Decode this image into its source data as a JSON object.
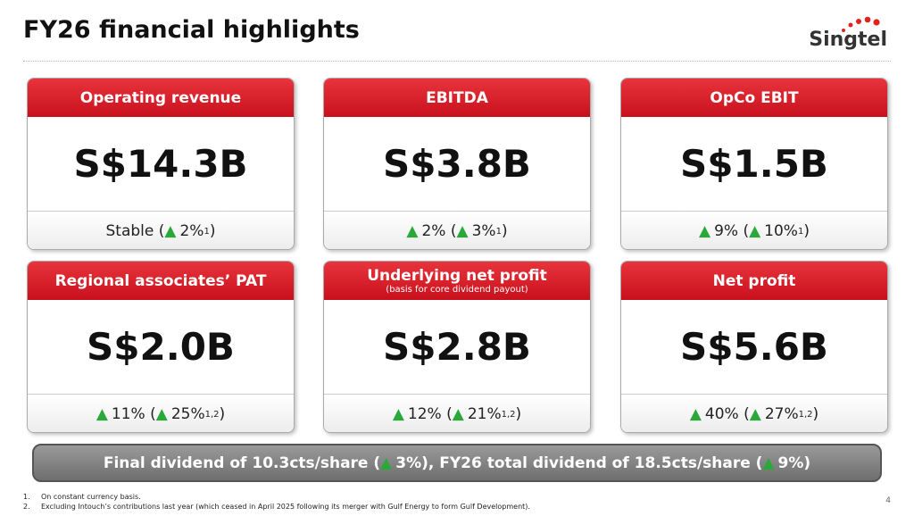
{
  "header": {
    "title": "FY26 financial highlights",
    "logo": "Singtel"
  },
  "cards": [
    {
      "title": "Operating revenue",
      "value": "S$14.3B",
      "change": [
        {
          "text": "Stable ("
        },
        {
          "arrow": "▲"
        },
        {
          "text": "2%"
        },
        {
          "sup": "1"
        },
        {
          "text": ")"
        }
      ]
    },
    {
      "title": "EBITDA",
      "value": "S$3.8B",
      "change": [
        {
          "arrow": "▲"
        },
        {
          "text": "2% ("
        },
        {
          "arrow": "▲"
        },
        {
          "text": "3%"
        },
        {
          "sup": "1"
        },
        {
          "text": ")"
        }
      ]
    },
    {
      "title": "OpCo EBIT",
      "value": "S$1.5B",
      "change": [
        {
          "arrow": "▲"
        },
        {
          "text": "9% ("
        },
        {
          "arrow": "▲"
        },
        {
          "text": "10%"
        },
        {
          "sup": "1"
        },
        {
          "text": ")"
        }
      ]
    },
    {
      "title": "Regional associates’ PAT",
      "value": "S$2.0B",
      "change": [
        {
          "arrow": "▲"
        },
        {
          "text": "11% ("
        },
        {
          "arrow": "▲"
        },
        {
          "text": "25%"
        },
        {
          "sup": "1,2"
        },
        {
          "text": ")"
        }
      ]
    },
    {
      "title": "Underlying net profit",
      "subtitle": "(basis for core dividend payout)",
      "value": "S$2.8B",
      "change": [
        {
          "arrow": "▲"
        },
        {
          "text": "12% ("
        },
        {
          "arrow": "▲"
        },
        {
          "text": "21%"
        },
        {
          "sup": "1,2"
        },
        {
          "text": ")"
        }
      ]
    },
    {
      "title": "Net profit",
      "value": "S$5.6B",
      "change": [
        {
          "arrow": "▲"
        },
        {
          "text": "40% ("
        },
        {
          "arrow": "▲"
        },
        {
          "text": "27%"
        },
        {
          "sup": "1,2"
        },
        {
          "text": ")"
        }
      ]
    }
  ],
  "banner": [
    {
      "text": "Final dividend of 10.3cts/share ("
    },
    {
      "arrow": "▲"
    },
    {
      "text": "3%), FY26 total dividend of 18.5cts/share ("
    },
    {
      "arrow": "▲"
    },
    {
      "text": "9%)"
    }
  ],
  "footnotes": [
    {
      "number": "1.",
      "text": "On constant currency basis."
    },
    {
      "number": "2.",
      "text": "Excluding Intouch’s contributions last year (which ceased in April 2025 following its merger with Gulf Energy to form Gulf Development)."
    }
  ],
  "page_number": "4"
}
